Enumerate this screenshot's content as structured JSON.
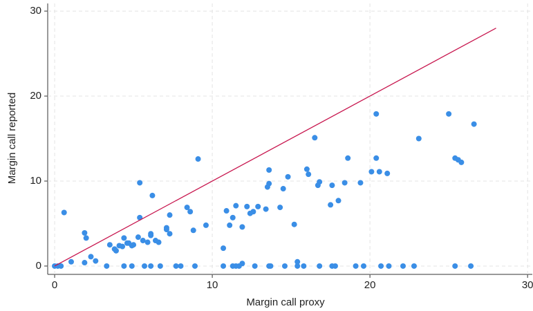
{
  "chart_data": {
    "type": "scatter",
    "x_label": "Margin call proxy",
    "y_label": "Margin call reported",
    "color": "#3a8ee6",
    "x": [
      0,
      0.2,
      0.4,
      0.6,
      1.05,
      1.9,
      2.0,
      1.9,
      2.3,
      2.6,
      3.3,
      3.5,
      3.8,
      3.9,
      4.1,
      4.3,
      4.4,
      4.4,
      4.6,
      4.7,
      4.9,
      4.9,
      5.0,
      5.3,
      5.4,
      5.4,
      5.6,
      5.7,
      5.9,
      6.1,
      6.1,
      6.1,
      6.2,
      6.4,
      6.6,
      6.7,
      7.1,
      7.1,
      7.3,
      7.3,
      7.7,
      8.0,
      8.4,
      8.6,
      8.8,
      8.9,
      9.1,
      9.6,
      10.7,
      10.7,
      10.9,
      11.1,
      11.3,
      11.3,
      11.5,
      11.5,
      11.7,
      11.9,
      11.9,
      12.2,
      12.4,
      12.6,
      12.7,
      12.9,
      13.4,
      13.5,
      13.6,
      13.6,
      13.6,
      13.7,
      14.3,
      14.5,
      14.6,
      14.8,
      15.2,
      15.4,
      15.4,
      15.8,
      16.0,
      16.1,
      16.5,
      16.7,
      16.8,
      16.8,
      17.5,
      17.6,
      17.6,
      17.8,
      18.0,
      18.4,
      18.6,
      19.1,
      19.4,
      19.6,
      20.1,
      20.4,
      20.4,
      20.6,
      20.7,
      21.1,
      21.2,
      22.1,
      22.8,
      23.1,
      25.4,
      25.0,
      25.4,
      25.6,
      25.8,
      26.4,
      26.6
    ],
    "y": [
      0,
      0,
      0,
      6.3,
      0.5,
      3.9,
      3.3,
      0.4,
      1.1,
      0.6,
      0,
      2.5,
      2.0,
      1.8,
      2.4,
      2.3,
      3.3,
      0,
      2.7,
      2.7,
      2.4,
      0,
      2.5,
      3.4,
      9.8,
      5.7,
      3.0,
      0,
      2.8,
      0,
      3.6,
      3.8,
      8.3,
      3.0,
      2.8,
      0,
      4.5,
      4.3,
      6.0,
      3.8,
      0,
      0,
      6.9,
      6.4,
      4.2,
      0,
      12.6,
      4.8,
      2.1,
      0,
      6.5,
      4.8,
      0,
      5.7,
      7.1,
      0,
      0,
      0.3,
      4.6,
      7.0,
      6.2,
      6.4,
      0,
      7.0,
      6.7,
      9.3,
      0,
      9.7,
      11.3,
      0,
      6.9,
      9.1,
      0,
      10.5,
      4.9,
      0.5,
      0,
      0,
      11.4,
      10.8,
      15.1,
      9.5,
      0,
      9.9,
      7.2,
      9.5,
      0,
      0,
      7.7,
      9.8,
      12.7,
      0,
      9.8,
      0,
      11.1,
      12.7,
      17.9,
      11.1,
      0,
      10.9,
      0,
      0,
      0,
      15.0,
      12.7,
      17.9,
      0,
      12.5,
      12.2,
      0,
      16.7
    ],
    "reference_line": {
      "color": "#c8174f",
      "x": [
        0,
        28
      ],
      "y": [
        0,
        28
      ]
    },
    "xlim": [
      -0.44,
      30.3
    ],
    "ylim": [
      -0.98,
      30.9
    ],
    "xticks": [
      0,
      10,
      20,
      30
    ],
    "yticks": [
      0,
      10,
      20,
      30
    ],
    "grid": true
  }
}
